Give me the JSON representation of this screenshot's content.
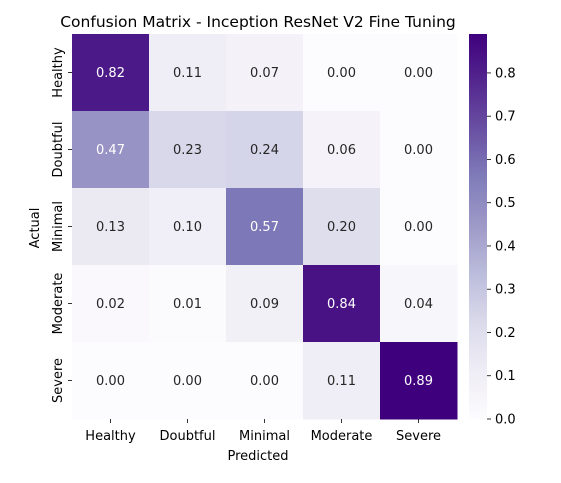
{
  "chart_data": {
    "type": "heatmap",
    "title": "Confusion Matrix - Inception ResNet V2 Fine Tuning",
    "xlabel": "Predicted",
    "ylabel": "Actual",
    "x_categories": [
      "Healthy",
      "Doubtful",
      "Minimal",
      "Moderate",
      "Severe"
    ],
    "y_categories": [
      "Healthy",
      "Doubtful",
      "Minimal",
      "Moderate",
      "Severe"
    ],
    "values": [
      [
        0.82,
        0.11,
        0.07,
        0.0,
        0.0
      ],
      [
        0.47,
        0.23,
        0.24,
        0.06,
        0.0
      ],
      [
        0.13,
        0.1,
        0.57,
        0.2,
        0.0
      ],
      [
        0.02,
        0.01,
        0.09,
        0.84,
        0.04
      ],
      [
        0.0,
        0.0,
        0.0,
        0.11,
        0.89
      ]
    ],
    "value_format": "0.00",
    "colormap": "Purples",
    "colorbar": {
      "range": [
        0.0,
        0.89
      ],
      "ticks": [
        0.0,
        0.1,
        0.2,
        0.3,
        0.4,
        0.5,
        0.6,
        0.7,
        0.8
      ],
      "tick_labels": [
        "0.0",
        "0.1",
        "0.2",
        "0.3",
        "0.4",
        "0.5",
        "0.6",
        "0.7",
        "0.8"
      ]
    },
    "colors": {
      "low": "#fcfbfd",
      "high": "#3f007d",
      "text_dark": "#262626",
      "text_light": "#ffffff"
    }
  }
}
